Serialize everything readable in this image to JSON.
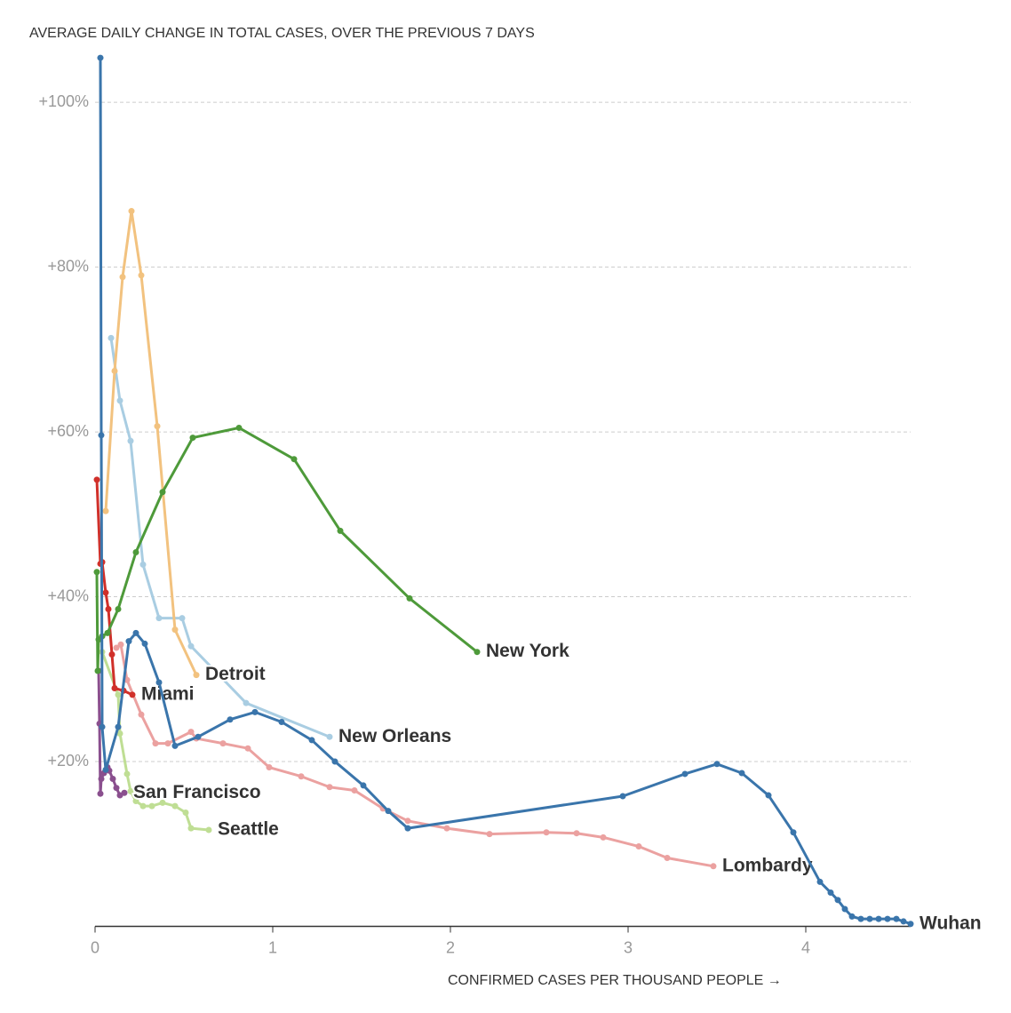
{
  "chart_data": {
    "type": "line",
    "title": "AVERAGE DAILY CHANGE IN TOTAL CASES, OVER THE PREVIOUS 7 DAYS",
    "x_label": "CONFIRMED CASES PER THOUSAND PEOPLE →",
    "xlim": [
      0,
      4.59
    ],
    "ylim": [
      0,
      106
    ],
    "xticks": [
      0,
      1,
      2,
      3,
      4
    ],
    "yticks": [
      {
        "value": 20,
        "label": "+20%"
      },
      {
        "value": 40,
        "label": "+40%"
      },
      {
        "value": 60,
        "label": "+60%"
      },
      {
        "value": 80,
        "label": "+80%"
      },
      {
        "value": 100,
        "label": "+100%"
      }
    ],
    "grid": true,
    "series": [
      {
        "name": "Lombardy",
        "color": "#eba1a0",
        "x": [
          0.12,
          0.145,
          0.18,
          0.26,
          0.34,
          0.41,
          0.54,
          0.57,
          0.72,
          0.86,
          0.98,
          1.16,
          1.32,
          1.46,
          1.62,
          1.76,
          1.98,
          2.22,
          2.54,
          2.71,
          2.86,
          3.06,
          3.22,
          3.48
        ],
        "values": [
          33.8,
          34.2,
          29.9,
          25.7,
          22.2,
          22.2,
          23.6,
          22.8,
          22.2,
          21.6,
          19.3,
          18.2,
          16.9,
          16.5,
          14.3,
          12.8,
          11.9,
          11.2,
          11.4,
          11.3,
          10.8,
          9.7,
          8.3,
          7.3
        ]
      },
      {
        "name": "Seattle",
        "color": "#bfde94",
        "x": [
          0.04,
          0.13,
          0.14,
          0.18,
          0.2,
          0.23,
          0.27,
          0.32,
          0.38,
          0.45,
          0.51,
          0.54,
          0.64
        ],
        "values": [
          33.3,
          28.1,
          23.4,
          18.5,
          16.4,
          15.2,
          14.6,
          14.6,
          15,
          14.6,
          13.8,
          11.9,
          11.7
        ]
      },
      {
        "name": "San Francisco",
        "color": "#8a4f8e",
        "x": [
          0.02,
          0.025,
          0.03,
          0.035,
          0.05,
          0.07,
          0.08,
          0.1,
          0.12,
          0.14,
          0.165
        ],
        "values": [
          31,
          24.6,
          16.1,
          17.9,
          18.6,
          19.3,
          18.9,
          17.9,
          16.8,
          15.9,
          16.2
        ]
      },
      {
        "name": "New Orleans",
        "color": "#a9cde2",
        "x": [
          0.09,
          0.14,
          0.2,
          0.27,
          0.36,
          0.49,
          0.54,
          0.85,
          1.32
        ],
        "values": [
          71.4,
          63.8,
          58.9,
          43.9,
          37.4,
          37.4,
          34,
          27.1,
          23
        ]
      },
      {
        "name": "Detroit",
        "color": "#f2c27f",
        "x": [
          0.06,
          0.11,
          0.155,
          0.205,
          0.26,
          0.35,
          0.45,
          0.57
        ],
        "values": [
          50.4,
          67.4,
          78.8,
          86.8,
          79,
          60.7,
          36,
          30.5
        ]
      },
      {
        "name": "Miami",
        "color": "#d0302a",
        "x": [
          0.01,
          0.03,
          0.04,
          0.06,
          0.075,
          0.095,
          0.11,
          0.16,
          0.21
        ],
        "values": [
          54.2,
          44,
          44.2,
          40.5,
          38.5,
          33,
          28.9,
          28.6,
          28.1
        ]
      },
      {
        "name": "New York",
        "color": "#4e9a3a",
        "x": [
          0.01,
          0.015,
          0.02,
          0.04,
          0.07,
          0.13,
          0.23,
          0.38,
          0.55,
          0.81,
          1.12,
          1.38,
          1.77,
          2.15
        ],
        "values": [
          43,
          31,
          34.8,
          35.2,
          35.6,
          38.5,
          45.4,
          52.7,
          59.3,
          60.5,
          56.7,
          48,
          39.8,
          33.3
        ]
      },
      {
        "name": "Wuhan",
        "color": "#3a75ab",
        "x": [
          0.03,
          0.035,
          0.04,
          0.06,
          0.13,
          0.19,
          0.23,
          0.28,
          0.36,
          0.45,
          0.58,
          0.76,
          0.9,
          1.05,
          1.22,
          1.35,
          1.51,
          1.65,
          1.76,
          2.97,
          3.32,
          3.5,
          3.64,
          3.79,
          3.93,
          4.08,
          4.14,
          4.18,
          4.22,
          4.26,
          4.31,
          4.36,
          4.41,
          4.46,
          4.51,
          4.55,
          4.59
        ],
        "values": [
          105.4,
          59.6,
          24.2,
          19,
          24.2,
          34.6,
          35.6,
          34.3,
          29.6,
          21.9,
          23,
          25.1,
          26,
          24.8,
          22.6,
          20,
          17.1,
          14,
          11.9,
          15.8,
          18.5,
          19.7,
          18.6,
          15.9,
          11.4,
          5.4,
          4.1,
          3.2,
          2.1,
          1.2,
          0.9,
          0.9,
          0.9,
          0.9,
          0.9,
          0.6,
          0.3
        ]
      }
    ]
  }
}
